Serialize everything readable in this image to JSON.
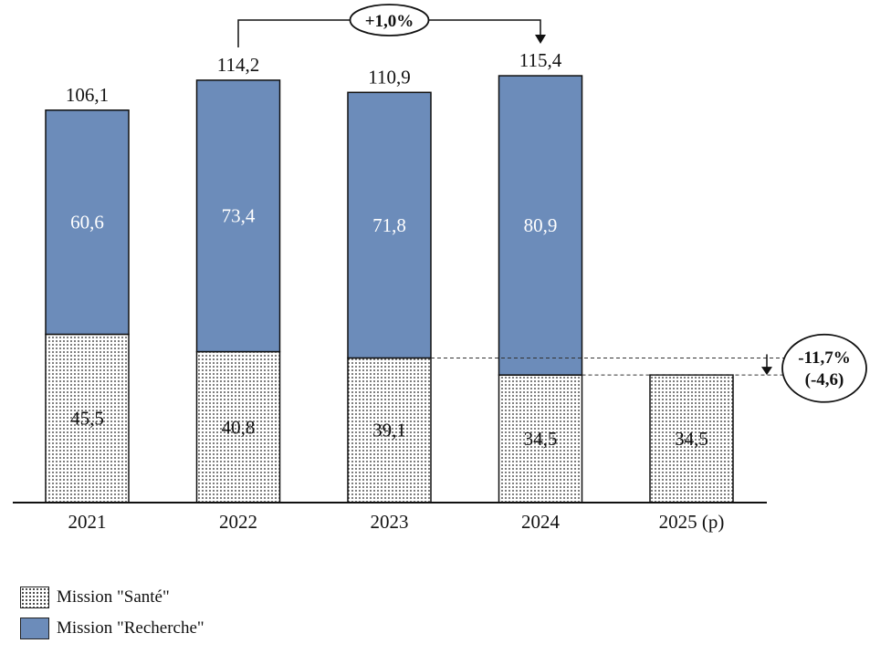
{
  "chart_data": {
    "type": "bar",
    "stacked": true,
    "categories": [
      "2021",
      "2022",
      "2023",
      "2024",
      "2025 (p)"
    ],
    "series": [
      {
        "name": "Mission \"Santé\"",
        "values": [
          45.5,
          40.8,
          39.1,
          34.5,
          34.5
        ],
        "pattern": "dots",
        "color": "#ffffff"
      },
      {
        "name": "Mission \"Recherche\"",
        "values": [
          60.6,
          73.4,
          71.8,
          80.9,
          null
        ],
        "color": "#6c8cba"
      }
    ],
    "value_labels": {
      "sante": [
        "45,5",
        "40,8",
        "39,1",
        "34,5",
        "34,5"
      ],
      "recherche": [
        "60,6",
        "73,4",
        "71,8",
        "80,9",
        ""
      ],
      "totals": [
        "106,1",
        "114,2",
        "110,9",
        "115,4",
        ""
      ]
    },
    "annotations": [
      {
        "text": "+1,0%",
        "from": "2022",
        "to": "2024"
      },
      {
        "text": "-11,7%",
        "text2": "(-4,6)",
        "from_value": 39.1,
        "to_value": 34.5
      }
    ],
    "ylim": [
      0,
      120
    ],
    "xlabel": "",
    "ylabel": "",
    "title": ""
  },
  "legend": {
    "sante_label": "Mission \"Santé\"",
    "recherche_label": "Mission \"Recherche\""
  },
  "colors": {
    "recherche": "#6c8cba",
    "outline": "#111111"
  }
}
